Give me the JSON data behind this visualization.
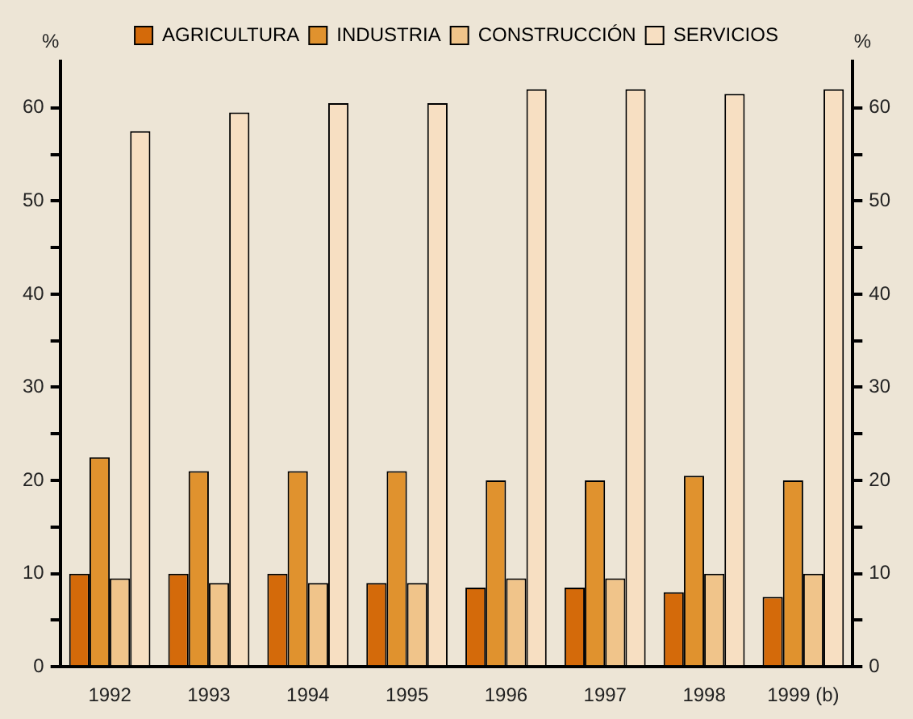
{
  "chart_data": {
    "type": "bar",
    "ylabel": "%",
    "y2label": "%",
    "categories": [
      "1992",
      "1993",
      "1994",
      "1995",
      "1996",
      "1997",
      "1998",
      "1999 (b)"
    ],
    "series": [
      {
        "name": "AGRICULTURA",
        "color": "#d46a0a",
        "values": [
          10,
          10,
          10,
          9,
          8.5,
          8.5,
          8,
          7.5
        ]
      },
      {
        "name": "INDUSTRIA",
        "color": "#e0922e",
        "values": [
          22.5,
          21,
          21,
          21,
          20,
          20,
          20.5,
          20
        ]
      },
      {
        "name": "CONSTRUCCIÓN",
        "color": "#f0c48a",
        "values": [
          9.5,
          9,
          9,
          9,
          9.5,
          9.5,
          10,
          10
        ]
      },
      {
        "name": "SERVICIOS",
        "color": "#f7dfc2",
        "values": [
          57.5,
          59.5,
          60.5,
          60.5,
          62,
          62,
          61.5,
          62
        ]
      }
    ],
    "ylim": [
      0,
      65
    ],
    "yticks": [
      0,
      {
        "value": 5,
        "label": null
      },
      10,
      {
        "value": 15,
        "label": null
      },
      20,
      {
        "value": 25,
        "label": null
      },
      30,
      {
        "value": 35,
        "label": null
      },
      40,
      {
        "value": 45,
        "label": null
      },
      50,
      {
        "value": 55,
        "label": null
      },
      60
    ],
    "y2lim": [
      0,
      65
    ],
    "y2ticks": [
      0,
      {
        "value": 5,
        "label": null
      },
      10,
      {
        "value": 15,
        "label": null
      },
      20,
      {
        "value": 25,
        "label": null
      },
      30,
      {
        "value": 35,
        "label": null
      },
      40,
      {
        "value": 45,
        "label": null
      },
      50,
      {
        "value": 55,
        "label": null
      },
      60
    ],
    "grid": false,
    "legend": "top"
  }
}
